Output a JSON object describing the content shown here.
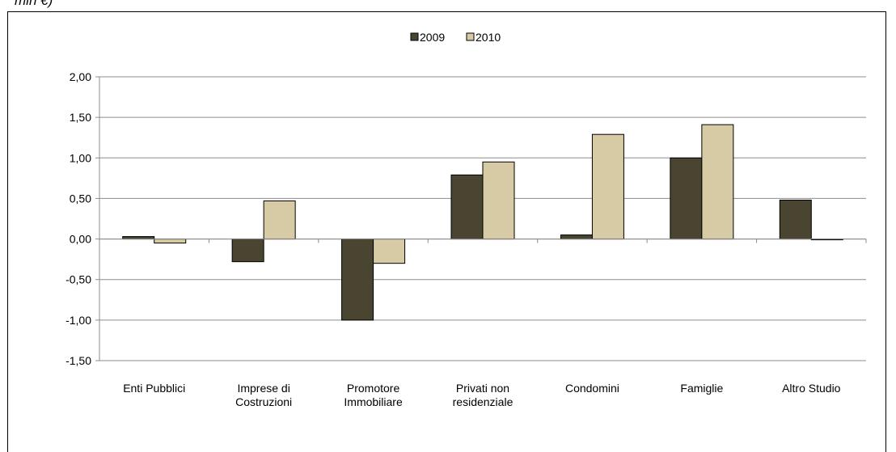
{
  "caption": "mln €)",
  "chart_data": {
    "type": "bar",
    "title": "",
    "xlabel": "",
    "ylabel": "",
    "categories": [
      [
        "Enti Pubblici"
      ],
      [
        "Imprese di",
        "Costruzioni"
      ],
      [
        "Promotore",
        "Immobiliare"
      ],
      [
        "Privati non",
        "residenziale"
      ],
      [
        "Condomini"
      ],
      [
        "Famiglie"
      ],
      [
        "Altro Studio"
      ]
    ],
    "series": [
      {
        "name": "2009",
        "color": "#4a4530",
        "values": [
          0.03,
          -0.28,
          -1.0,
          0.79,
          0.05,
          1.0,
          0.48
        ]
      },
      {
        "name": "2010",
        "color": "#d6cba4",
        "values": [
          -0.05,
          0.47,
          -0.3,
          0.95,
          1.29,
          1.41,
          -0.01
        ]
      }
    ],
    "ylim": [
      -1.5,
      2.0
    ],
    "yticks": [
      "2,00",
      "1,50",
      "1,00",
      "0,50",
      "0,00",
      "-0,50",
      "-1,00",
      "-1,50"
    ],
    "ytick_values": [
      2.0,
      1.5,
      1.0,
      0.5,
      0.0,
      -0.5,
      -1.0,
      -1.5
    ],
    "grid": true,
    "legend_position": "top-center"
  }
}
